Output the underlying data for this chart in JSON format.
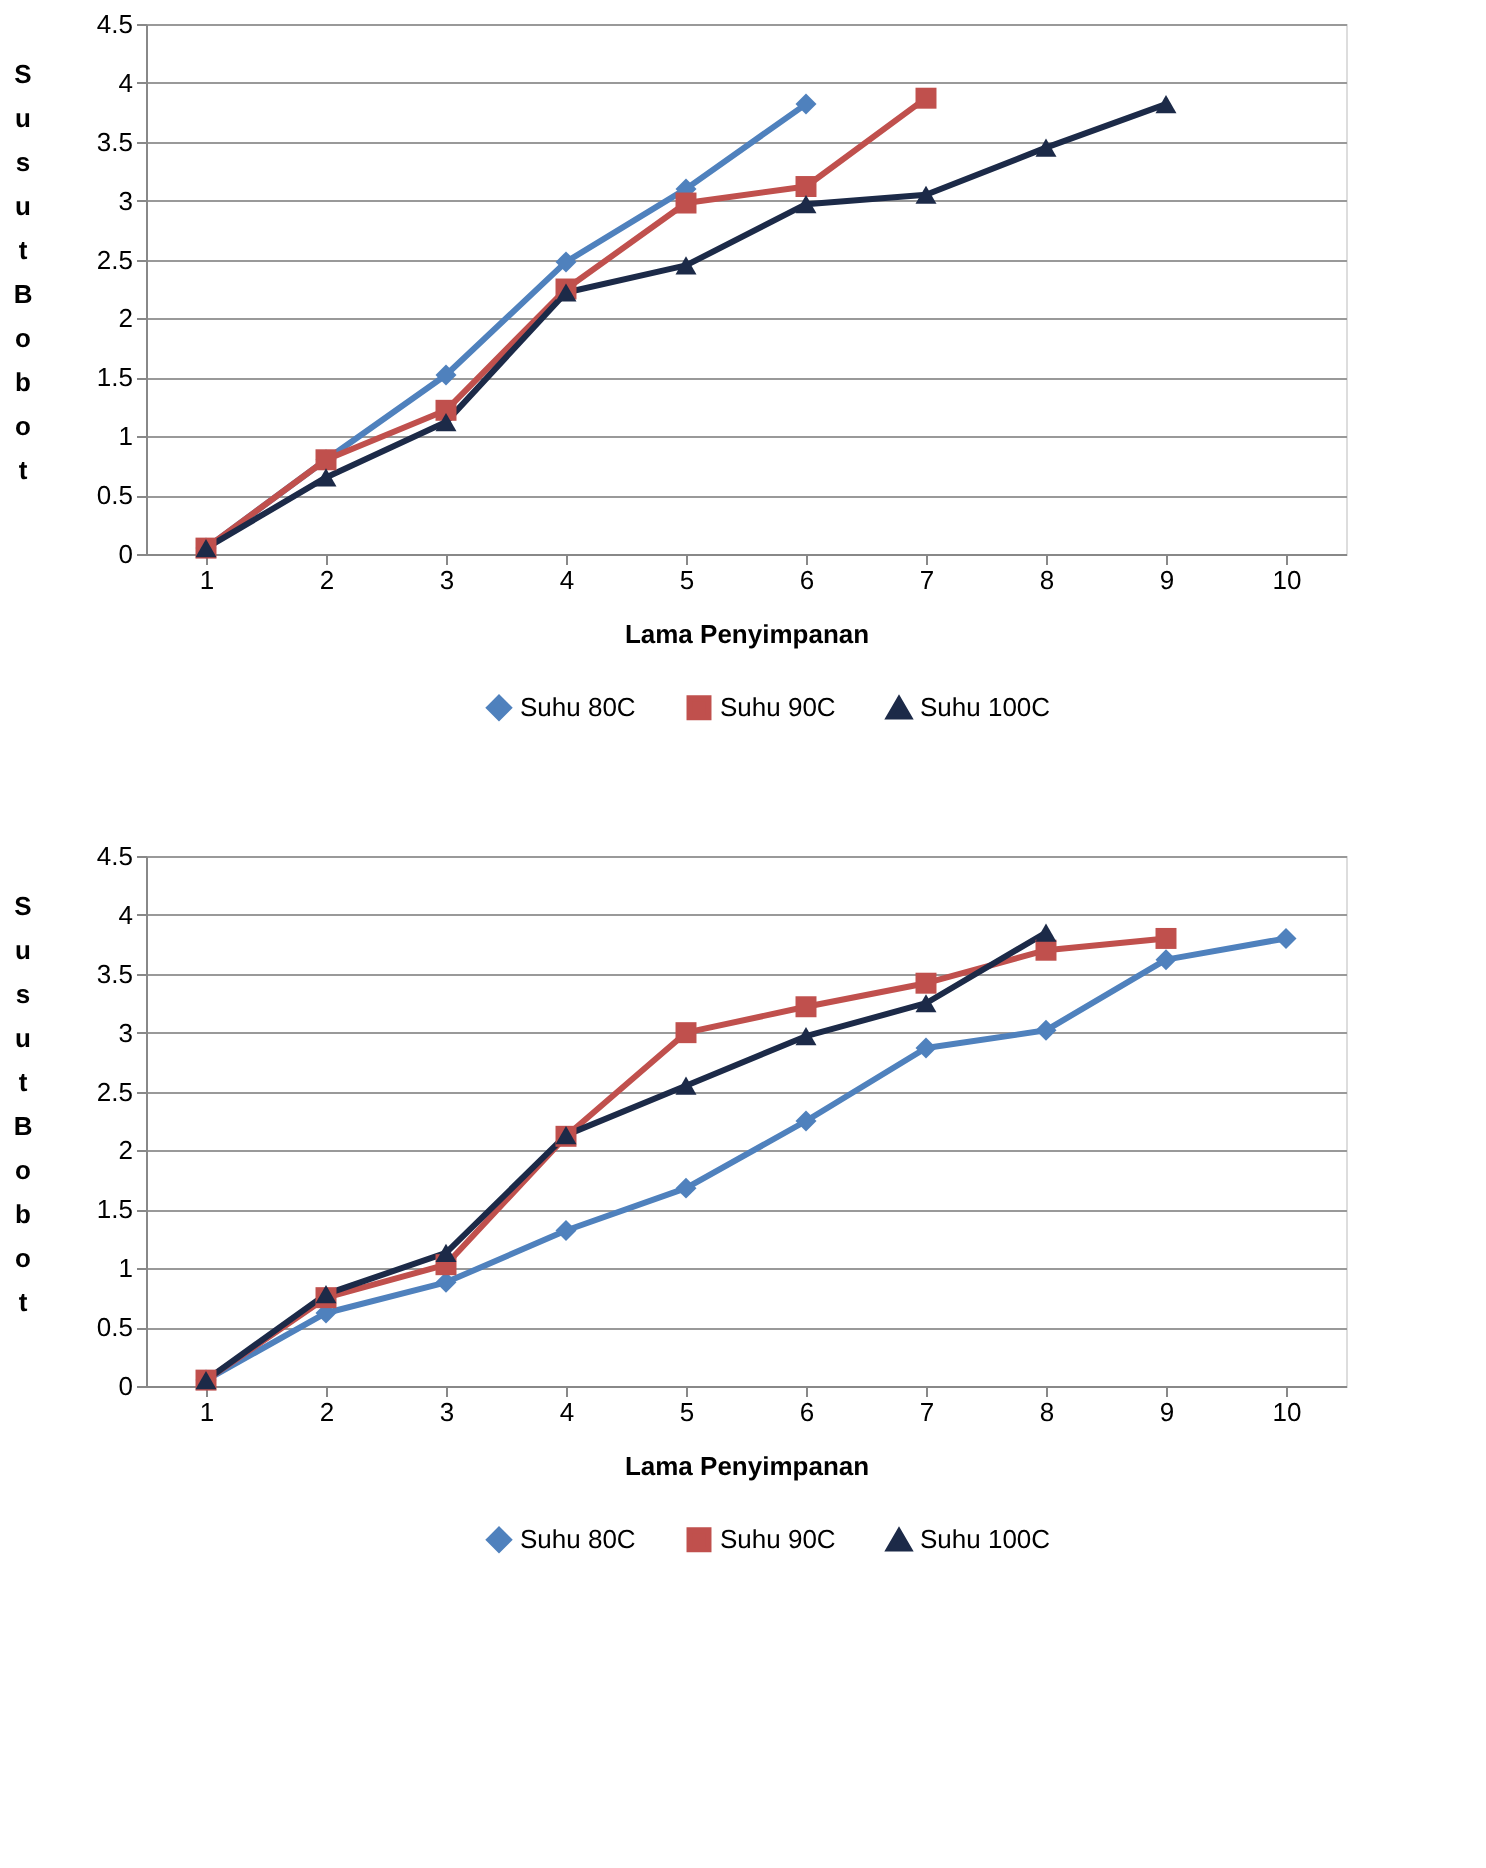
{
  "chart_data": [
    {
      "type": "line",
      "xlabel": "Lama Penyimpanan",
      "ylabel": "Susut Bobot",
      "categories": [
        "1",
        "2",
        "3",
        "4",
        "5",
        "6",
        "7",
        "8",
        "9",
        "10"
      ],
      "ylim": [
        0,
        4.5
      ],
      "yticks": [
        0,
        0.5,
        1,
        1.5,
        2,
        2.5,
        3,
        3.5,
        4,
        4.5
      ],
      "grid": "y",
      "legend": "bottom",
      "series": [
        {
          "name": "Suhu 80C",
          "color": "#4f81bd",
          "marker": "diamond",
          "values": [
            0.05,
            0.8,
            1.52,
            2.48,
            3.1,
            3.82,
            null,
            null,
            null,
            null
          ]
        },
        {
          "name": "Suhu 90C",
          "color": "#c0504d",
          "marker": "square",
          "values": [
            0.05,
            0.8,
            1.22,
            2.25,
            2.98,
            3.12,
            3.87,
            null,
            null,
            null
          ]
        },
        {
          "name": "Suhu 100C",
          "color": "#1c2a48",
          "marker": "triangle",
          "values": [
            0.05,
            0.65,
            1.12,
            2.22,
            2.45,
            2.97,
            3.05,
            3.45,
            3.82,
            null
          ]
        }
      ]
    },
    {
      "type": "line",
      "xlabel": "Lama Penyimpanan",
      "ylabel": "Susut Bobot",
      "categories": [
        "1",
        "2",
        "3",
        "4",
        "5",
        "6",
        "7",
        "8",
        "9",
        "10"
      ],
      "ylim": [
        0,
        4.5
      ],
      "yticks": [
        0,
        0.5,
        1,
        1.5,
        2,
        2.5,
        3,
        3.5,
        4,
        4.5
      ],
      "grid": "y",
      "legend": "bottom",
      "series": [
        {
          "name": "Suhu 80C",
          "color": "#4f81bd",
          "marker": "diamond",
          "values": [
            0.05,
            0.62,
            0.88,
            1.32,
            1.68,
            2.25,
            2.87,
            3.02,
            3.62,
            3.8
          ]
        },
        {
          "name": "Suhu 90C",
          "color": "#c0504d",
          "marker": "square",
          "values": [
            0.05,
            0.75,
            1.03,
            2.12,
            3.0,
            3.22,
            3.42,
            3.7,
            3.8,
            null
          ]
        },
        {
          "name": "Suhu 100C",
          "color": "#1c2a48",
          "marker": "triangle",
          "values": [
            0.05,
            0.78,
            1.13,
            2.13,
            2.55,
            2.97,
            3.25,
            3.85,
            null,
            null
          ]
        }
      ]
    }
  ]
}
